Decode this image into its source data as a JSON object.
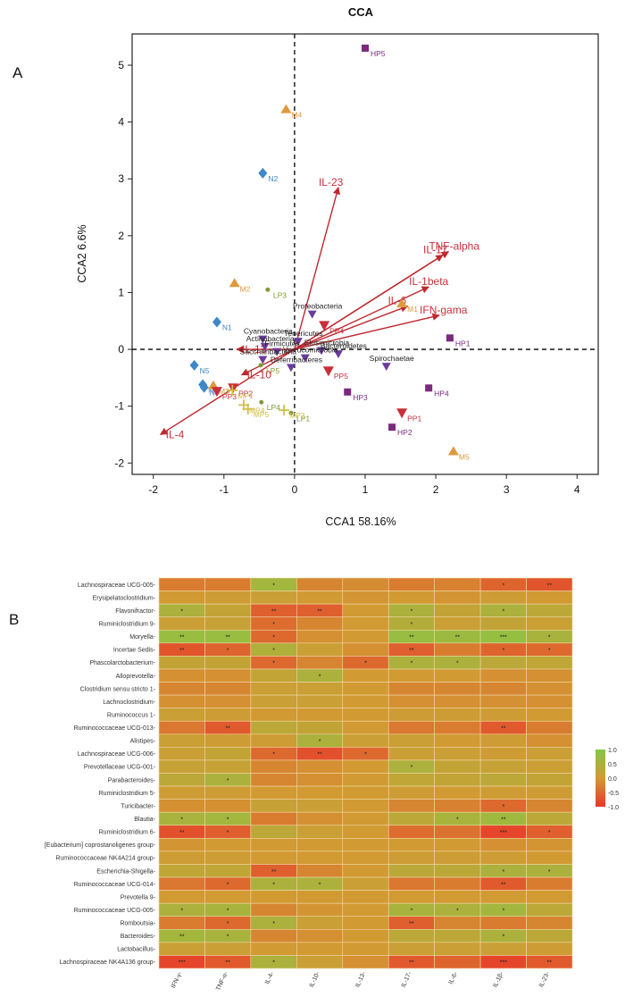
{
  "chart_data": [
    {
      "type": "scatter",
      "panel": "A",
      "title": "CCA",
      "xlabel": "CCA1  58.16%",
      "ylabel": "CCA2  6.6%",
      "xlim": [
        -2.3,
        4.3
      ],
      "ylim": [
        -2.2,
        5.55
      ],
      "xticks": [
        -2,
        -1,
        0,
        1,
        2,
        3,
        4
      ],
      "yticks": [
        -2,
        -1,
        0,
        1,
        2,
        3,
        4,
        5
      ],
      "group_colors": {
        "N": "#3f87c9",
        "M": "#e0983c",
        "HP": "#7b2a7d",
        "LP": "#7f9a34",
        "PP": "#c8303a",
        "MP": "#d2bf45"
      },
      "samples": [
        {
          "label": "HP5",
          "group": "HP",
          "shape": "square",
          "x": 1.0,
          "y": 5.3
        },
        {
          "label": "M4",
          "group": "M",
          "shape": "triangle",
          "x": -0.12,
          "y": 4.22
        },
        {
          "label": "N2",
          "group": "N",
          "shape": "diamond",
          "x": -0.45,
          "y": 3.1
        },
        {
          "label": "M2",
          "group": "M",
          "shape": "triangle",
          "x": -0.85,
          "y": 1.16
        },
        {
          "label": "LP3",
          "group": "LP",
          "shape": "dot",
          "x": -0.38,
          "y": 1.05
        },
        {
          "label": "N1",
          "group": "N",
          "shape": "diamond",
          "x": -1.1,
          "y": 0.48
        },
        {
          "label": "N5",
          "group": "N",
          "shape": "diamond",
          "x": -1.42,
          "y": -0.28
        },
        {
          "label": "N4",
          "group": "N",
          "shape": "diamond",
          "x": -1.3,
          "y": -0.62
        },
        {
          "label": "N3",
          "group": "N",
          "shape": "diamond",
          "x": -1.28,
          "y": -0.67
        },
        {
          "label": "M3",
          "group": "M",
          "shape": "triangle",
          "x": -1.15,
          "y": -0.64
        },
        {
          "label": "M1",
          "group": "M",
          "shape": "triangle",
          "x": 1.52,
          "y": 0.8
        },
        {
          "label": "M5",
          "group": "M",
          "shape": "triangle",
          "x": 2.25,
          "y": -1.8
        },
        {
          "label": "HP1",
          "group": "HP",
          "shape": "square",
          "x": 2.2,
          "y": 0.2
        },
        {
          "label": "HP4",
          "group": "HP",
          "shape": "square",
          "x": 1.9,
          "y": -0.68
        },
        {
          "label": "HP3",
          "group": "HP",
          "shape": "square",
          "x": 0.75,
          "y": -0.75
        },
        {
          "label": "HP2",
          "group": "HP",
          "shape": "square",
          "x": 1.38,
          "y": -1.37
        },
        {
          "label": "LP5",
          "group": "LP",
          "shape": "dot",
          "x": -0.48,
          "y": -0.28
        },
        {
          "label": "LP4",
          "group": "LP",
          "shape": "dot",
          "x": -0.47,
          "y": -0.93
        },
        {
          "label": "LP1",
          "group": "LP",
          "shape": "dot",
          "x": -0.05,
          "y": -1.12
        },
        {
          "label": "PP4",
          "group": "PP",
          "shape": "down-triangle",
          "x": 0.42,
          "y": 0.42
        },
        {
          "label": "PP5",
          "group": "PP",
          "shape": "down-triangle",
          "x": 0.48,
          "y": -0.38
        },
        {
          "label": "PP1",
          "group": "PP",
          "shape": "down-triangle",
          "x": 1.52,
          "y": -1.12
        },
        {
          "label": "PP2",
          "group": "PP",
          "shape": "down-triangle",
          "x": -0.87,
          "y": -0.68
        },
        {
          "label": "PP3",
          "group": "PP",
          "shape": "down-triangle",
          "x": -1.1,
          "y": -0.74
        },
        {
          "label": "MP4",
          "group": "MP",
          "shape": "plus",
          "x": -0.72,
          "y": -0.98
        },
        {
          "label": "MP5",
          "group": "MP",
          "shape": "plus",
          "x": -0.66,
          "y": -1.05
        },
        {
          "label": "MP2",
          "group": "MP",
          "shape": "plus",
          "x": -0.15,
          "y": -1.07
        },
        {
          "label": "MP1",
          "group": "MP",
          "shape": "plus",
          "x": -0.88,
          "y": -0.72
        }
      ],
      "taxa": [
        {
          "label": "Proteobacteria",
          "x": 0.25,
          "y": 0.62
        },
        {
          "label": "Cyanobacteria",
          "x": -0.45,
          "y": 0.18
        },
        {
          "label": "Tenericutes",
          "x": 0.05,
          "y": 0.14
        },
        {
          "label": "Actinobacteria",
          "x": -0.42,
          "y": 0.05
        },
        {
          "label": "Firmicutes",
          "x": -0.25,
          "y": -0.04
        },
        {
          "label": "Saccharibacteria",
          "x": -0.45,
          "y": -0.18
        },
        {
          "label": "Elusimicrobia",
          "x": 0.38,
          "y": -0.02
        },
        {
          "label": "Bacteroidetes",
          "x": 0.62,
          "y": -0.08
        },
        {
          "label": "Verrucomicrobia",
          "x": 0.15,
          "y": -0.15
        },
        {
          "label": "Spirochaetae",
          "x": 1.3,
          "y": -0.3
        },
        {
          "label": "Deferribacteres",
          "x": -0.05,
          "y": -0.32
        }
      ],
      "arrows": [
        {
          "label": "IL-23",
          "x": 0.62,
          "y": 2.85
        },
        {
          "label": "TNF-alpha",
          "x": 2.18,
          "y": 1.72
        },
        {
          "label": "IL-17",
          "x": 2.1,
          "y": 1.66
        },
        {
          "label": "IL-1beta",
          "x": 1.9,
          "y": 1.1
        },
        {
          "label": "IL-6",
          "x": 1.6,
          "y": 0.76
        },
        {
          "label": "IFN-gama",
          "x": 2.05,
          "y": 0.6
        },
        {
          "label": "IL-13",
          "x": -0.82,
          "y": 0.0
        },
        {
          "label": "IL-10",
          "x": -0.75,
          "y": -0.45
        },
        {
          "label": "IL-4",
          "x": -1.9,
          "y": -1.5
        }
      ]
    },
    {
      "type": "heatmap",
      "panel": "B",
      "rows": [
        "Lachnospiraceae UCG-005",
        "Erysipelatoclostridium",
        "Flavonifractor",
        "Ruminiclostridium 9",
        "Moryella",
        "Incertae Sedis",
        "Phascolarctobacterium",
        "Alloprevotella",
        "Clostridium sensu stricto 1",
        "Lachnoclostridium",
        "Ruminococcus 1",
        "Ruminococcaceae UCG-013",
        "Alistipes",
        "Lachnospiraceae UCG-006",
        "Prevotellaceae UCG-001",
        "Parabacteroides",
        "Ruminiclostridium 5",
        "Turicibacter",
        "Blautia",
        "Ruminiclostridium 6",
        "[Eubacterium] coprostanoligenes group",
        "Ruminococcaceae NK4A214 group",
        "Escherichia-Shigella",
        "Ruminococcaceae UCG-014",
        "Prevotella 9",
        "Ruminococcaceae UCG-005",
        "Romboutsia",
        "Bacteroides",
        "Lactobacillus",
        "Lachnospiraceae NK4A136 group"
      ],
      "columns": [
        "IFN-γ",
        "TNF-α",
        "IL-4",
        "IL-10",
        "IL-13",
        "IL-17",
        "IL-6",
        "IL-1β",
        "IL-23"
      ],
      "values": [
        [
          -0.3,
          -0.3,
          0.6,
          -0.2,
          -0.15,
          -0.3,
          -0.25,
          -0.55,
          -0.7
        ],
        [
          0.0,
          0.05,
          0.1,
          0.0,
          -0.05,
          0.0,
          -0.05,
          0.05,
          0.0
        ],
        [
          0.5,
          0.2,
          -0.6,
          -0.6,
          0.0,
          0.5,
          0.2,
          0.5,
          0.3
        ],
        [
          0.1,
          0.15,
          -0.45,
          -0.2,
          0.0,
          0.4,
          0.1,
          0.2,
          0.1
        ],
        [
          0.75,
          0.75,
          -0.5,
          -0.1,
          0.0,
          0.75,
          0.7,
          0.8,
          0.55
        ],
        [
          -0.7,
          -0.55,
          0.45,
          0.1,
          -0.1,
          -0.6,
          -0.3,
          -0.55,
          -0.5
        ],
        [
          0.2,
          0.2,
          -0.5,
          -0.2,
          -0.5,
          0.5,
          0.5,
          0.3,
          0.25
        ],
        [
          -0.1,
          -0.1,
          0.2,
          0.5,
          0.0,
          0.0,
          0.0,
          -0.1,
          -0.1
        ],
        [
          -0.2,
          -0.2,
          0.1,
          0.1,
          0.0,
          -0.2,
          -0.2,
          -0.2,
          -0.1
        ],
        [
          -0.1,
          -0.1,
          0.1,
          0.1,
          0.0,
          -0.1,
          -0.1,
          -0.1,
          -0.1
        ],
        [
          0.1,
          0.05,
          0.0,
          0.0,
          0.0,
          0.05,
          0.05,
          0.05,
          0.0
        ],
        [
          -0.35,
          -0.65,
          0.3,
          0.2,
          0.0,
          -0.35,
          -0.3,
          -0.65,
          -0.3
        ],
        [
          0.1,
          0.05,
          0.05,
          0.5,
          0.1,
          0.1,
          0.0,
          0.05,
          -0.1
        ],
        [
          0.1,
          0.2,
          -0.5,
          -0.75,
          -0.5,
          0.1,
          0.1,
          0.05,
          0.1
        ],
        [
          0.15,
          0.15,
          -0.2,
          -0.1,
          0.0,
          0.5,
          0.2,
          0.15,
          0.1
        ],
        [
          0.3,
          0.5,
          -0.2,
          -0.1,
          0.0,
          0.25,
          0.2,
          0.3,
          0.2
        ],
        [
          0.05,
          0.05,
          0.0,
          0.0,
          0.0,
          0.05,
          0.0,
          0.05,
          0.05
        ],
        [
          -0.1,
          -0.1,
          0.15,
          0.1,
          0.0,
          -0.2,
          -0.25,
          -0.5,
          -0.2
        ],
        [
          0.55,
          0.6,
          -0.3,
          -0.1,
          0.0,
          0.3,
          0.55,
          0.65,
          0.3
        ],
        [
          -0.75,
          -0.6,
          0.3,
          0.1,
          0.0,
          -0.45,
          -0.4,
          -0.85,
          -0.6
        ],
        [
          -0.05,
          0.0,
          0.0,
          0.0,
          0.0,
          0.0,
          0.0,
          -0.1,
          -0.05
        ],
        [
          0.05,
          0.05,
          0.0,
          0.0,
          0.0,
          0.05,
          0.05,
          0.05,
          0.0
        ],
        [
          0.25,
          0.25,
          -0.6,
          -0.2,
          0.0,
          0.3,
          0.3,
          0.5,
          0.5
        ],
        [
          -0.35,
          -0.5,
          0.5,
          0.5,
          0.1,
          -0.35,
          -0.3,
          -0.65,
          -0.3
        ],
        [
          0.0,
          0.0,
          0.0,
          0.0,
          0.0,
          0.0,
          0.0,
          0.0,
          0.0
        ],
        [
          0.5,
          0.55,
          -0.2,
          -0.05,
          0.0,
          0.55,
          0.5,
          0.6,
          0.3
        ],
        [
          -0.3,
          -0.5,
          0.5,
          0.1,
          0.0,
          -0.6,
          -0.2,
          -0.3,
          -0.2
        ],
        [
          0.6,
          0.55,
          -0.2,
          -0.1,
          0.0,
          0.3,
          0.3,
          0.5,
          0.3
        ],
        [
          0.1,
          0.1,
          0.0,
          0.0,
          0.0,
          0.1,
          0.1,
          0.1,
          0.05
        ],
        [
          -0.85,
          -0.65,
          0.5,
          0.1,
          -0.1,
          -0.65,
          -0.55,
          -0.85,
          -0.65
        ]
      ],
      "significance": [
        [
          "",
          "",
          "*",
          "",
          "",
          "",
          "",
          "*",
          "**"
        ],
        [
          "",
          "",
          "",
          "",
          "",
          "",
          "",
          "",
          ""
        ],
        [
          "*",
          "",
          "**",
          "**",
          "",
          "*",
          "",
          "*",
          ""
        ],
        [
          "",
          "",
          "*",
          "",
          "",
          "*",
          "",
          "",
          ""
        ],
        [
          "**",
          "**",
          "*",
          "",
          "",
          "**",
          "**",
          "***",
          "*"
        ],
        [
          "**",
          "*",
          "*",
          "",
          "",
          "**",
          "",
          "*",
          "*"
        ],
        [
          "",
          "",
          "*",
          "",
          "*",
          "*",
          "*",
          "",
          ""
        ],
        [
          "",
          "",
          "",
          "*",
          "",
          "",
          "",
          "",
          ""
        ],
        [
          "",
          "",
          "",
          "",
          "",
          "",
          "",
          "",
          ""
        ],
        [
          "",
          "",
          "",
          "",
          "",
          "",
          "",
          "",
          ""
        ],
        [
          "",
          "",
          "",
          "",
          "",
          "",
          "",
          "",
          ""
        ],
        [
          "",
          "**",
          "",
          "",
          "",
          "",
          "",
          "**",
          ""
        ],
        [
          "",
          "",
          "",
          "*",
          "",
          "",
          "",
          "",
          ""
        ],
        [
          "",
          "",
          "*",
          "**",
          "*",
          "",
          "",
          "",
          ""
        ],
        [
          "",
          "",
          "",
          "",
          "",
          "*",
          "",
          "",
          ""
        ],
        [
          "",
          "*",
          "",
          "",
          "",
          "",
          "",
          "",
          ""
        ],
        [
          "",
          "",
          "",
          "",
          "",
          "",
          "",
          "",
          ""
        ],
        [
          "",
          "",
          "",
          "",
          "",
          "",
          "",
          "*",
          ""
        ],
        [
          "*",
          "*",
          "",
          "",
          "",
          "",
          "*",
          "**",
          ""
        ],
        [
          "**",
          "*",
          "",
          "",
          "",
          "",
          "",
          "***",
          "*"
        ],
        [
          "",
          "",
          "",
          "",
          "",
          "",
          "",
          "",
          ""
        ],
        [
          "",
          "",
          "",
          "",
          "",
          "",
          "",
          "",
          ""
        ],
        [
          "",
          "",
          "**",
          "",
          "",
          "",
          "",
          "*",
          "*"
        ],
        [
          "",
          "*",
          "*",
          "*",
          "",
          "",
          "",
          "**",
          ""
        ],
        [
          "",
          "",
          "",
          "",
          "",
          "",
          "",
          "",
          ""
        ],
        [
          "*",
          "*",
          "",
          "",
          "",
          "*",
          "*",
          "*",
          ""
        ],
        [
          "",
          "*",
          "*",
          "",
          "",
          "**",
          "",
          "",
          ""
        ],
        [
          "**",
          "*",
          "",
          "",
          "",
          "",
          "",
          "*",
          ""
        ],
        [
          "",
          "",
          "",
          "",
          "",
          "",
          "",
          "",
          ""
        ],
        [
          "***",
          "**",
          "*",
          "",
          "",
          "**",
          "",
          "***",
          "**"
        ]
      ],
      "color_scale": {
        "low": "#e8372a",
        "mid": "#d29a33",
        "high": "#84c844"
      },
      "legend_ticks": [
        "1.0",
        "0.5",
        "0.0",
        "-0.5",
        "-1.0"
      ]
    }
  ],
  "panel_labels": {
    "a": "A",
    "b": "B"
  }
}
